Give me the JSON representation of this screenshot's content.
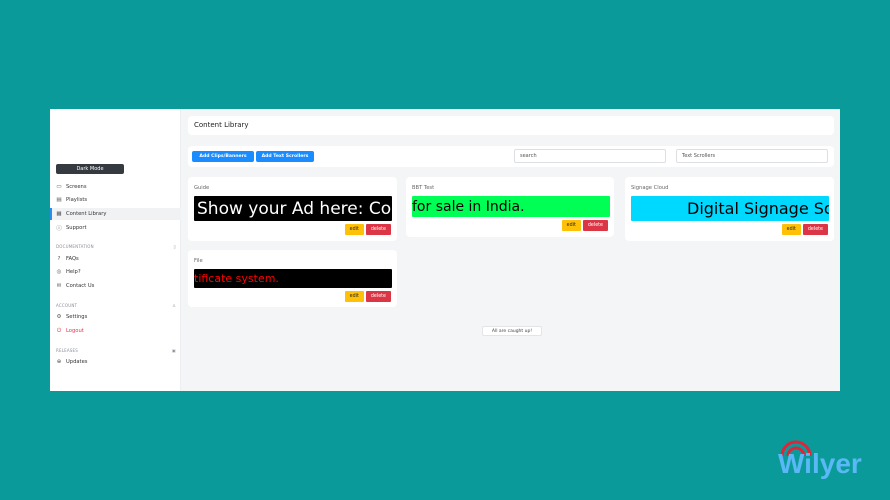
{
  "sidebar": {
    "dark_mode": "Dark Mode",
    "items": [
      {
        "label": "Screens",
        "icon": "monitor-icon"
      },
      {
        "label": "Playlists",
        "icon": "film-icon"
      },
      {
        "label": "Content Library",
        "icon": "grid-icon",
        "active": true
      },
      {
        "label": "Support",
        "icon": "info-icon"
      }
    ],
    "documentation": {
      "title": "DOCUMENTATION",
      "items": [
        {
          "label": "FAQs"
        },
        {
          "label": "Help?"
        },
        {
          "label": "Contact Us"
        }
      ]
    },
    "account": {
      "title": "ACCOUNT",
      "items": [
        {
          "label": "Settings"
        },
        {
          "label": "Logout"
        }
      ]
    },
    "releases": {
      "title": "RELEASES",
      "items": [
        {
          "label": "Updates"
        }
      ]
    }
  },
  "header": {
    "title": "Content Library"
  },
  "toolbar": {
    "add_clips": "Add Clips/Banners",
    "add_scrollers": "Add Text Scrollers",
    "search_placeholder": "search",
    "filter_value": "Text Scrollers"
  },
  "cards": [
    {
      "title": "Guide",
      "text": "Show your Ad here: Con",
      "bg": "#000000",
      "fg": "#ffffff"
    },
    {
      "title": "BBT Test",
      "text": "for sale in India.",
      "bg": "#00ff55",
      "fg": "#000000"
    },
    {
      "title": "Signage Cloud",
      "text": "Digital Signage So",
      "bg": "#00d9ff",
      "fg": "#000000"
    },
    {
      "title": "File",
      "text": "tificate system.",
      "bg": "#000000",
      "fg": "#ff0000"
    }
  ],
  "actions": {
    "edit": "edit",
    "delete": "delete"
  },
  "status": "All are caught up!",
  "brand": {
    "name": "Wilyer"
  }
}
